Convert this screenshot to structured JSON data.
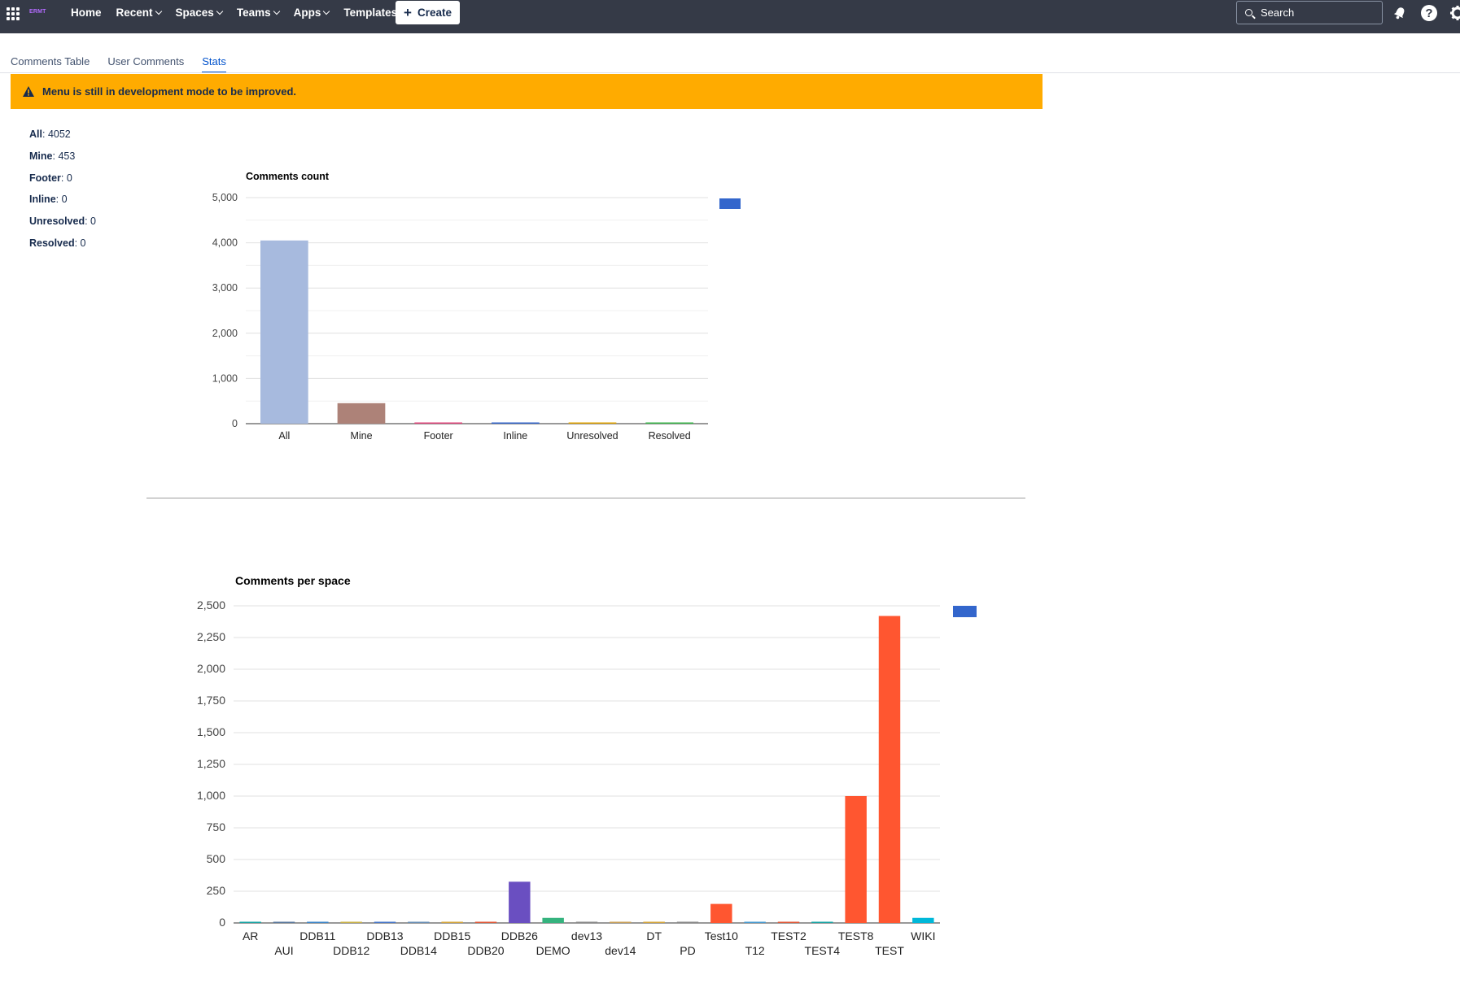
{
  "topnav": {
    "logo_text": "ERMT",
    "items": [
      {
        "label": "Home",
        "dropdown": false
      },
      {
        "label": "Recent",
        "dropdown": true
      },
      {
        "label": "Spaces",
        "dropdown": true
      },
      {
        "label": "Teams",
        "dropdown": true
      },
      {
        "label": "Apps",
        "dropdown": true
      },
      {
        "label": "Templates",
        "dropdown": false
      }
    ],
    "create_label": "Create",
    "search_placeholder": "Search"
  },
  "tabs": [
    {
      "label": "Comments Table",
      "active": false
    },
    {
      "label": "User Comments",
      "active": false
    },
    {
      "label": "Stats",
      "active": true
    }
  ],
  "warning": {
    "message": "Menu is still in development mode to be improved.",
    "color": "#ffab00"
  },
  "stats": [
    {
      "label": "All",
      "value": "4052"
    },
    {
      "label": "Mine",
      "value": "453"
    },
    {
      "label": "Footer",
      "value": "0"
    },
    {
      "label": "Inline",
      "value": "0"
    },
    {
      "label": "Unresolved",
      "value": "0"
    },
    {
      "label": "Resolved",
      "value": "0"
    }
  ],
  "chart_data": [
    {
      "type": "bar",
      "title": "Comments count",
      "categories": [
        "All",
        "Mine",
        "Footer",
        "Inline",
        "Unresolved",
        "Resolved"
      ],
      "values": [
        4052,
        453,
        0,
        0,
        0,
        0
      ],
      "colors": [
        "#a7bade",
        "#ad8278",
        "#e0457b",
        "#3366cc",
        "#e2a300",
        "#39b74a"
      ],
      "ylim": [
        0,
        5000
      ],
      "yticks": [
        0,
        1000,
        2000,
        3000,
        4000,
        5000
      ],
      "legend": "right",
      "legend_color": "#3366cc",
      "grid": true
    },
    {
      "type": "bar",
      "title": "Comments per space",
      "categories": [
        "AR",
        "AUI",
        "DDB11",
        "DDB12",
        "DDB13",
        "DDB14",
        "DDB15",
        "DDB20",
        "DDB26",
        "DEMO",
        "dev13",
        "dev14",
        "DT",
        "PD",
        "Test10",
        "T12",
        "TEST2",
        "TEST4",
        "TEST8",
        "TEST",
        "WIKI"
      ],
      "values": [
        8,
        6,
        3,
        3,
        3,
        3,
        6,
        4,
        325,
        40,
        0,
        1,
        2,
        0,
        150,
        3,
        5,
        8,
        1000,
        2420,
        40
      ],
      "colors": [
        "#1aa5a5",
        "#5c7a9e",
        "#3f87c9",
        "#c9b24a",
        "#4a78c9",
        "#6a8fb5",
        "#d4a63d",
        "#e05a3a",
        "#6a4fc1",
        "#35b37e",
        "#8a8a8a",
        "#c9a15a",
        "#d4a63d",
        "#8a8a8a",
        "#ff5630",
        "#4a9bd0",
        "#e05a3a",
        "#1aa5a5",
        "#ff5630",
        "#ff5630",
        "#00b8d9"
      ],
      "ylim": [
        0,
        2500
      ],
      "yticks": [
        0,
        250,
        500,
        750,
        1000,
        1250,
        1500,
        1750,
        2000,
        2250,
        2500
      ],
      "legend": "right",
      "legend_color": "#3366cc",
      "grid": true
    }
  ]
}
